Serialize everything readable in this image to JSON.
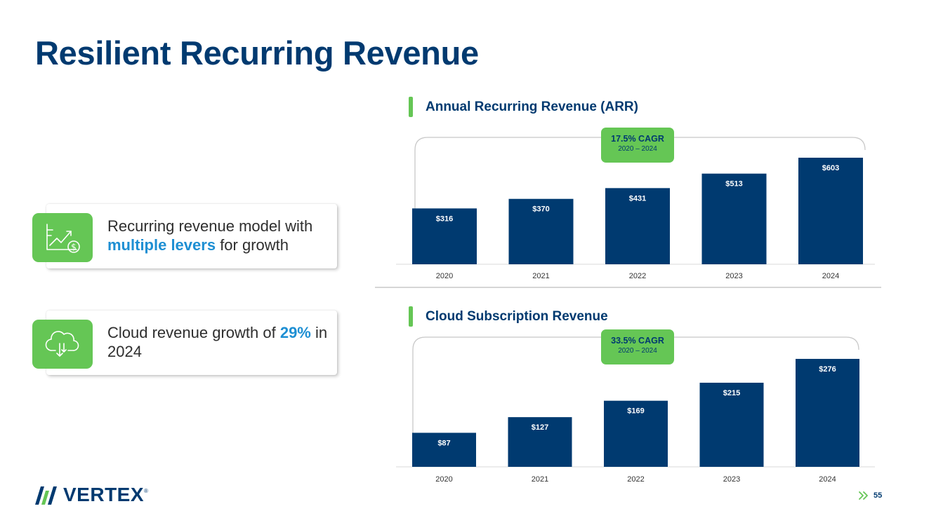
{
  "page": {
    "title": "Resilient Recurring Revenue",
    "page_number": "55"
  },
  "logo": {
    "text": "VERTEX",
    "mark": "®"
  },
  "cards": [
    {
      "icon": "chart-dollar-icon",
      "text_before": "Recurring revenue model with ",
      "highlight": "multiple levers",
      "text_after": " for growth"
    },
    {
      "icon": "cloud-download-icon",
      "text_before": "Cloud revenue growth of ",
      "highlight": "29%",
      "text_after": " in 2024"
    }
  ],
  "colors": {
    "bar": "#003a70",
    "accent": "#65c655",
    "highlight": "#1e8fd3",
    "title": "#003a70"
  },
  "chart_data": [
    {
      "type": "bar",
      "title": "Annual Recurring Revenue (ARR)",
      "categories": [
        "2020",
        "2021",
        "2022",
        "2023",
        "2024"
      ],
      "values": [
        316,
        370,
        431,
        513,
        603
      ],
      "data_labels": [
        "$316",
        "$370",
        "$431",
        "$513",
        "$603"
      ],
      "annotation": {
        "main": "17.5% CAGR",
        "sub": "2020 – 2024"
      },
      "ylim": [
        0,
        603
      ],
      "grid": false
    },
    {
      "type": "bar",
      "title": "Cloud Subscription Revenue",
      "categories": [
        "2020",
        "2021",
        "2022",
        "2023",
        "2024"
      ],
      "values": [
        87,
        127,
        169,
        215,
        276
      ],
      "data_labels": [
        "$87",
        "$127",
        "$169",
        "$215",
        "$276"
      ],
      "annotation": {
        "main": "33.5% CAGR",
        "sub": "2020 – 2024"
      },
      "ylim": [
        0,
        276
      ],
      "grid": false
    }
  ]
}
